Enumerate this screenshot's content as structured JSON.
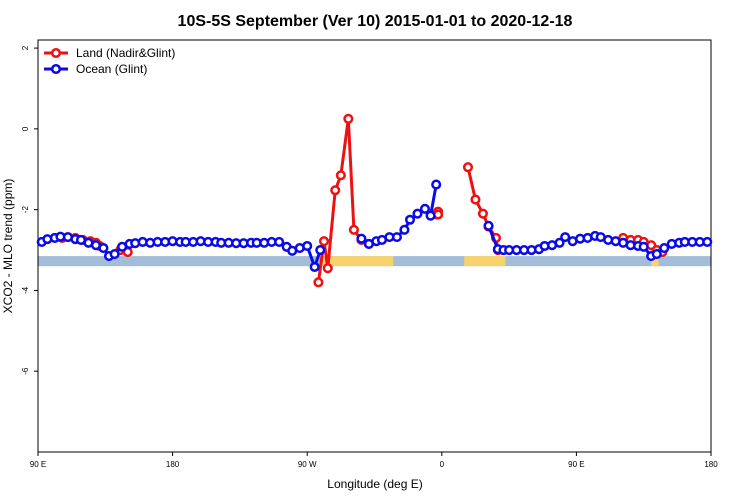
{
  "chart_data": {
    "type": "line",
    "title": "10S-5S September (Ver 10)   2015-01-01 to 2020-12-18",
    "xlabel": "Longitude (deg E)",
    "ylabel": "XCO2 - MLO trend (ppm)",
    "xlim": [
      90,
      450
    ],
    "ylim": [
      -8,
      2.2
    ],
    "x_ticks": [
      {
        "value": 90,
        "label": "90 E"
      },
      {
        "value": 162,
        "label": "180"
      },
      {
        "value": 234,
        "label": "90 W"
      },
      {
        "value": 306,
        "label": "0"
      },
      {
        "value": 378,
        "label": "90 E"
      },
      {
        "value": 450,
        "label": "180"
      }
    ],
    "y_ticks": [
      {
        "value": 2,
        "label": "2"
      },
      {
        "value": 0,
        "label": "0"
      },
      {
        "value": -2,
        "label": "-2"
      },
      {
        "value": -4,
        "label": "-4"
      },
      {
        "value": -6,
        "label": "-6"
      }
    ],
    "legend_position": "top-left",
    "colors": {
      "land": "#ee1111",
      "ocean": "#0a0ae6",
      "ocean_band": "#a3bcd8",
      "land_band": "#f7d36e"
    },
    "surface_band": {
      "y_range": [
        -3.15,
        -3.4
      ],
      "land_segments": [
        [
          242,
          280
        ],
        [
          318,
          340
        ],
        [
          418,
          422
        ]
      ]
    },
    "series": [
      {
        "name": "Land (Nadir&Glint)",
        "color": "#ee1111",
        "segments": [
          [
            [
              103,
              -2.7
            ],
            [
              106,
              -2.68
            ],
            [
              110,
              -2.7
            ],
            [
              114,
              -2.75
            ],
            [
              118,
              -2.78
            ],
            [
              121,
              -2.82
            ],
            [
              123,
              -2.9
            ]
          ],
          [
            [
              134,
              -3.0
            ],
            [
              138,
              -3.05
            ]
          ],
          [
            [
              240,
              -3.8
            ],
            [
              243,
              -2.78
            ],
            [
              245,
              -3.45
            ],
            [
              249,
              -1.52
            ],
            [
              252,
              -1.15
            ],
            [
              256,
              0.25
            ],
            [
              259,
              -2.5
            ],
            [
              263,
              -2.75
            ],
            [
              267,
              -2.85
            ]
          ],
          [
            [
              304,
              -2.05
            ],
            [
              303,
              -2.12
            ]
          ],
          [
            [
              304,
              -2.12
            ],
            [
              304,
              -2.12
            ]
          ],
          [
            [
              320,
              -0.95
            ],
            [
              324,
              -1.75
            ],
            [
              328,
              -2.1
            ],
            [
              331,
              -2.42
            ],
            [
              335,
              -2.7
            ],
            [
              336,
              -3.0
            ]
          ],
          [
            [
              403,
              -2.7
            ],
            [
              407,
              -2.75
            ],
            [
              411,
              -2.75
            ],
            [
              414,
              -2.8
            ],
            [
              418,
              -2.88
            ],
            [
              421,
              -3.0
            ],
            [
              424,
              -3.05
            ]
          ]
        ]
      },
      {
        "name": "Ocean (Glint)",
        "color": "#0a0ae6",
        "segments": [
          [
            [
              92,
              -2.8
            ],
            [
              95,
              -2.73
            ],
            [
              99,
              -2.7
            ],
            [
              102,
              -2.67
            ],
            [
              106,
              -2.68
            ],
            [
              110,
              -2.73
            ],
            [
              113,
              -2.75
            ],
            [
              117,
              -2.82
            ],
            [
              121,
              -2.88
            ],
            [
              125,
              -2.95
            ],
            [
              128,
              -3.15
            ],
            [
              131,
              -3.1
            ],
            [
              135,
              -2.92
            ],
            [
              139,
              -2.85
            ],
            [
              142,
              -2.83
            ],
            [
              146,
              -2.8
            ],
            [
              150,
              -2.82
            ],
            [
              154,
              -2.8
            ],
            [
              158,
              -2.8
            ],
            [
              162,
              -2.78
            ],
            [
              166,
              -2.8
            ],
            [
              169,
              -2.8
            ],
            [
              173,
              -2.8
            ],
            [
              177,
              -2.78
            ],
            [
              181,
              -2.8
            ],
            [
              185,
              -2.8
            ],
            [
              188,
              -2.82
            ],
            [
              192,
              -2.82
            ],
            [
              196,
              -2.83
            ],
            [
              200,
              -2.83
            ],
            [
              204,
              -2.82
            ],
            [
              207,
              -2.82
            ],
            [
              211,
              -2.82
            ],
            [
              215,
              -2.8
            ],
            [
              219,
              -2.8
            ],
            [
              223,
              -2.92
            ],
            [
              226,
              -3.02
            ],
            [
              230,
              -2.95
            ],
            [
              234,
              -2.9
            ],
            [
              238,
              -3.42
            ],
            [
              241,
              -3.0
            ]
          ],
          [
            [
              263,
              -2.72
            ],
            [
              267,
              -2.85
            ],
            [
              271,
              -2.78
            ],
            [
              274,
              -2.75
            ],
            [
              278,
              -2.68
            ],
            [
              282,
              -2.68
            ],
            [
              286,
              -2.5
            ],
            [
              289,
              -2.25
            ],
            [
              293,
              -2.1
            ],
            [
              297,
              -1.98
            ],
            [
              300,
              -2.15
            ],
            [
              303,
              -1.38
            ]
          ],
          [
            [
              331,
              -2.4
            ],
            [
              336,
              -2.98
            ],
            [
              339,
              -3.0
            ],
            [
              342,
              -3.0
            ],
            [
              346,
              -3.0
            ],
            [
              350,
              -3.0
            ],
            [
              354,
              -3.0
            ],
            [
              358,
              -2.98
            ],
            [
              361,
              -2.9
            ],
            [
              365,
              -2.88
            ],
            [
              369,
              -2.82
            ],
            [
              372,
              -2.68
            ],
            [
              376,
              -2.78
            ],
            [
              380,
              -2.72
            ],
            [
              384,
              -2.7
            ],
            [
              388,
              -2.65
            ],
            [
              391,
              -2.68
            ],
            [
              395,
              -2.75
            ],
            [
              399,
              -2.78
            ],
            [
              403,
              -2.82
            ],
            [
              407,
              -2.88
            ],
            [
              411,
              -2.9
            ],
            [
              414,
              -2.92
            ],
            [
              418,
              -3.15
            ],
            [
              421,
              -3.1
            ],
            [
              425,
              -2.95
            ],
            [
              429,
              -2.85
            ],
            [
              433,
              -2.82
            ],
            [
              436,
              -2.8
            ],
            [
              440,
              -2.8
            ],
            [
              444,
              -2.8
            ],
            [
              448,
              -2.8
            ]
          ]
        ]
      }
    ]
  }
}
